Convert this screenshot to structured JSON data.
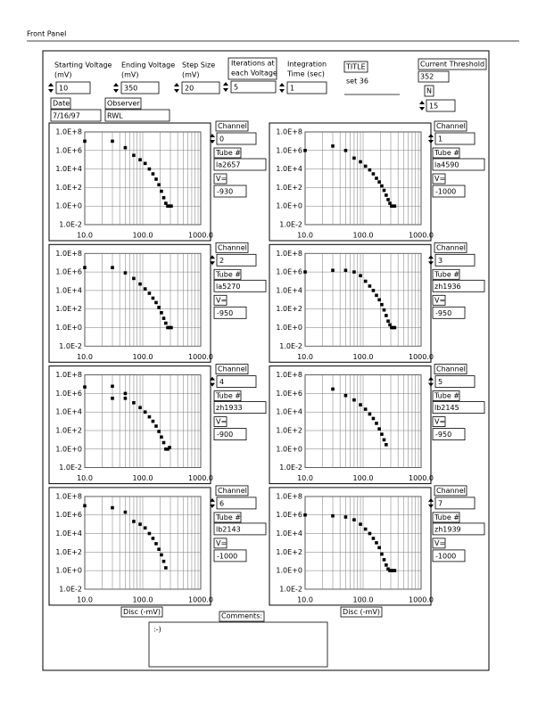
{
  "header": {
    "title": "Front Panel"
  },
  "controls": {
    "starting_voltage": {
      "label": [
        "Starting Voltage",
        "(mV)"
      ],
      "value": 10
    },
    "ending_voltage": {
      "label": [
        "Ending Voltage",
        "(mV)"
      ],
      "value": 350
    },
    "step_size": {
      "label": [
        "Step Size",
        "(mV)"
      ],
      "value": 20
    },
    "iterations": {
      "label": [
        "Iterations at",
        "each Voltage"
      ],
      "value": 5
    },
    "integration_time": {
      "label": [
        "Integration",
        "Time (sec)"
      ],
      "value": 1
    },
    "title": {
      "label": "TITLE",
      "value": "set 36"
    },
    "current_threshold": {
      "label": "Current Threshold",
      "value": 352
    },
    "n": {
      "label": "N",
      "value": 15
    },
    "date": {
      "label": "Date",
      "value": "7/16/97"
    },
    "observer": {
      "label": "Observer",
      "value": "RWL"
    },
    "comments": {
      "label": "Comments:",
      "value": ":-)"
    }
  },
  "channels": [
    {
      "label": "Channel",
      "value": 0,
      "tube_label": "Tube #",
      "tube": "la2657",
      "v_label": "V=",
      "v": -930
    },
    {
      "label": "Channel",
      "value": 1,
      "tube_label": "Tube #",
      "tube": "la4590",
      "v_label": "V=",
      "v": -1000
    },
    {
      "label": "Channel",
      "value": 2,
      "tube_label": "Tube #",
      "tube": "la5270",
      "v_label": "V=",
      "v": -950
    },
    {
      "label": "Channel",
      "value": 3,
      "tube_label": "Tube #",
      "tube": "zh1936",
      "v_label": "V=",
      "v": -950
    },
    {
      "label": "Channel",
      "value": 4,
      "tube_label": "Tube #",
      "tube": "zh1933",
      "v_label": "V=",
      "v": -900
    },
    {
      "label": "Channel",
      "value": 5,
      "tube_label": "Tube #",
      "tube": "lb2145",
      "v_label": "V=",
      "v": -950
    },
    {
      "label": "Channel",
      "value": 6,
      "tube_label": "Tube #",
      "tube": "lb2143",
      "v_label": "V=",
      "v": -1000
    },
    {
      "label": "Channel",
      "value": 7,
      "tube_label": "Tube #",
      "tube": "zh1939",
      "v_label": "V=",
      "v": -1000
    }
  ],
  "chart_data": [
    {
      "type": "scatter",
      "log_x": true,
      "log_y": true,
      "grid": true,
      "color": "#000000",
      "x": [
        10,
        30,
        50,
        70,
        90,
        110,
        130,
        150,
        170,
        190,
        210,
        230,
        250,
        270,
        290,
        310
      ],
      "y": [
        10000000,
        10000000,
        2000000,
        300000,
        100000,
        40000,
        10000,
        3000,
        800,
        200,
        40,
        8,
        2,
        1,
        1,
        1
      ],
      "xlim": [
        10,
        1000
      ],
      "ylim": [
        0.01,
        100000000
      ],
      "xticks": [
        {
          "value": 10,
          "label": "10.0"
        },
        {
          "value": 100,
          "label": "100.0"
        },
        {
          "value": 1000,
          "label": "1000.0"
        }
      ],
      "yticks": [
        {
          "value": 0.01,
          "label": "1.0E-2"
        },
        {
          "value": 1,
          "label": "1.0E+0"
        },
        {
          "value": 100,
          "label": "1.0E+2"
        },
        {
          "value": 10000,
          "label": "1.0E+4"
        },
        {
          "value": 1000000,
          "label": "1.0E+6"
        },
        {
          "value": 100000000,
          "label": "1.0E+8"
        }
      ]
    },
    {
      "type": "scatter",
      "log_x": true,
      "log_y": true,
      "grid": true,
      "color": "#000000",
      "x": [
        10,
        30,
        50,
        70,
        90,
        110,
        130,
        150,
        170,
        190,
        210,
        230,
        250,
        270,
        290,
        310,
        330,
        350
      ],
      "y": [
        1000000,
        3000000,
        1000000,
        150000,
        60000,
        20000,
        8000,
        3000,
        1000,
        400,
        150,
        50,
        15,
        5,
        2,
        1,
        1,
        1
      ],
      "xlim": [
        10,
        1000
      ],
      "ylim": [
        0.01,
        100000000
      ],
      "xticks": [
        {
          "value": 10,
          "label": "10.0"
        },
        {
          "value": 100,
          "label": "100.0"
        },
        {
          "value": 1000,
          "label": "1000.0"
        }
      ],
      "yticks": [
        {
          "value": 0.01,
          "label": "1.0E-2"
        },
        {
          "value": 1,
          "label": "1.0E+0"
        },
        {
          "value": 100,
          "label": "1.0E+2"
        },
        {
          "value": 10000,
          "label": "1.0E+4"
        },
        {
          "value": 1000000,
          "label": "1.0E+6"
        },
        {
          "value": 100000000,
          "label": "1.0E+8"
        }
      ]
    },
    {
      "type": "scatter",
      "log_x": true,
      "log_y": true,
      "grid": true,
      "color": "#000000",
      "x": [
        10,
        30,
        50,
        70,
        90,
        110,
        130,
        150,
        170,
        190,
        210,
        230,
        250,
        270,
        290,
        310
      ],
      "y": [
        3000000,
        3000000,
        800000,
        200000,
        50000,
        15000,
        5000,
        1500,
        500,
        150,
        40,
        10,
        3,
        1,
        1,
        1
      ],
      "xlim": [
        10,
        1000
      ],
      "ylim": [
        0.01,
        100000000
      ],
      "xticks": [
        {
          "value": 10,
          "label": "10.0"
        },
        {
          "value": 100,
          "label": "100.0"
        },
        {
          "value": 1000,
          "label": "1000.0"
        }
      ],
      "yticks": [
        {
          "value": 0.01,
          "label": "1.0E-2"
        },
        {
          "value": 1,
          "label": "1.0E+0"
        },
        {
          "value": 100,
          "label": "1.0E+2"
        },
        {
          "value": 10000,
          "label": "1.0E+4"
        },
        {
          "value": 1000000,
          "label": "1.0E+6"
        },
        {
          "value": 100000000,
          "label": "1.0E+8"
        }
      ]
    },
    {
      "type": "scatter",
      "log_x": true,
      "log_y": true,
      "grid": true,
      "color": "#000000",
      "x": [
        10,
        30,
        50,
        70,
        90,
        110,
        130,
        150,
        170,
        190,
        210,
        230,
        250,
        270,
        290,
        310,
        330,
        350
      ],
      "y": [
        1000000,
        1500000,
        1500000,
        1000000,
        400000,
        100000,
        30000,
        10000,
        3000,
        1000,
        300,
        80,
        20,
        5,
        2,
        1,
        1,
        1
      ],
      "xlim": [
        10,
        1000
      ],
      "ylim": [
        0.01,
        100000000
      ],
      "xticks": [
        {
          "value": 10,
          "label": "10.0"
        },
        {
          "value": 100,
          "label": "100.0"
        },
        {
          "value": 1000,
          "label": "1000.0"
        }
      ],
      "yticks": [
        {
          "value": 0.01,
          "label": "1.0E-2"
        },
        {
          "value": 1,
          "label": "1.0E+0"
        },
        {
          "value": 100,
          "label": "1.0E+2"
        },
        {
          "value": 10000,
          "label": "1.0E+4"
        },
        {
          "value": 1000000,
          "label": "1.0E+6"
        },
        {
          "value": 100000000,
          "label": "1.0E+8"
        }
      ]
    },
    {
      "type": "scatter",
      "log_x": true,
      "log_y": true,
      "grid": true,
      "color": "#000000",
      "x": [
        10,
        30,
        30,
        50,
        50,
        70,
        90,
        110,
        130,
        150,
        170,
        190,
        210,
        230,
        250,
        270,
        290
      ],
      "y": [
        5000000,
        6000000,
        300000,
        1000000,
        300000,
        100000,
        30000,
        10000,
        3000,
        1000,
        300,
        80,
        20,
        5,
        1,
        1,
        1.5
      ],
      "xlim": [
        10,
        1000
      ],
      "ylim": [
        0.01,
        100000000
      ],
      "xticks": [
        {
          "value": 10,
          "label": "10.0"
        },
        {
          "value": 100,
          "label": "100.0"
        },
        {
          "value": 1000,
          "label": "1000.0"
        }
      ],
      "yticks": [
        {
          "value": 0.01,
          "label": "1.0E-2"
        },
        {
          "value": 1,
          "label": "1.0E+0"
        },
        {
          "value": 100,
          "label": "1.0E+2"
        },
        {
          "value": 10000,
          "label": "1.0E+4"
        },
        {
          "value": 1000000,
          "label": "1.0E+6"
        },
        {
          "value": 100000000,
          "label": "1.0E+8"
        }
      ]
    },
    {
      "type": "scatter",
      "log_x": true,
      "log_y": true,
      "grid": true,
      "color": "#000000",
      "x": [
        30,
        50,
        70,
        90,
        110,
        130,
        150,
        170,
        190,
        210,
        230,
        250
      ],
      "y": [
        3000000,
        600000,
        200000,
        60000,
        20000,
        6000,
        2000,
        600,
        150,
        40,
        10,
        3
      ],
      "xlim": [
        10,
        1000
      ],
      "ylim": [
        0.01,
        100000000
      ],
      "xticks": [
        {
          "value": 10,
          "label": "10.0"
        },
        {
          "value": 100,
          "label": "100.0"
        },
        {
          "value": 1000,
          "label": "1000.0"
        }
      ],
      "yticks": [
        {
          "value": 0.01,
          "label": "1.0E-2"
        },
        {
          "value": 1,
          "label": "1.0E+0"
        },
        {
          "value": 100,
          "label": "1.0E+2"
        },
        {
          "value": 10000,
          "label": "1.0E+4"
        },
        {
          "value": 1000000,
          "label": "1.0E+6"
        },
        {
          "value": 100000000,
          "label": "1.0E+8"
        }
      ]
    },
    {
      "type": "scatter",
      "log_x": true,
      "log_y": true,
      "grid": true,
      "color": "#000000",
      "x_label": "Disc (-mV)",
      "x": [
        10,
        30,
        50,
        70,
        90,
        110,
        130,
        150,
        170,
        190,
        210,
        230,
        250
      ],
      "y": [
        10000000,
        6000000,
        2000000,
        200000,
        100000,
        40000,
        10000,
        3000,
        800,
        200,
        50,
        10,
        2
      ],
      "xlim": [
        10,
        1000
      ],
      "ylim": [
        0.01,
        100000000
      ],
      "xticks": [
        {
          "value": 10,
          "label": "10.0"
        },
        {
          "value": 100,
          "label": "100.0"
        },
        {
          "value": 1000,
          "label": "1000.0"
        }
      ],
      "yticks": [
        {
          "value": 0.01,
          "label": "1.0E-2"
        },
        {
          "value": 1,
          "label": "1.0E+0"
        },
        {
          "value": 100,
          "label": "1.0E+2"
        },
        {
          "value": 10000,
          "label": "1.0E+4"
        },
        {
          "value": 1000000,
          "label": "1.0E+6"
        },
        {
          "value": 100000000,
          "label": "1.0E+8"
        }
      ]
    },
    {
      "type": "scatter",
      "log_x": true,
      "log_y": true,
      "grid": true,
      "color": "#000000",
      "x_label": "Disc (-mV)",
      "x": [
        10,
        30,
        50,
        70,
        90,
        110,
        130,
        150,
        170,
        190,
        210,
        230,
        250,
        270,
        290,
        310,
        330,
        350
      ],
      "y": [
        1000000,
        800000,
        600000,
        300000,
        100000,
        30000,
        10000,
        3000,
        1000,
        300,
        60,
        15,
        4,
        1.5,
        1,
        1,
        1,
        1
      ],
      "xlim": [
        10,
        1000
      ],
      "ylim": [
        0.01,
        100000000
      ],
      "xticks": [
        {
          "value": 10,
          "label": "10.0"
        },
        {
          "value": 100,
          "label": "100.0"
        },
        {
          "value": 1000,
          "label": "1000.0"
        }
      ],
      "yticks": [
        {
          "value": 0.01,
          "label": "1.0E-2"
        },
        {
          "value": 1,
          "label": "1.0E+0"
        },
        {
          "value": 100,
          "label": "1.0E+2"
        },
        {
          "value": 10000,
          "label": "1.0E+4"
        },
        {
          "value": 1000000,
          "label": "1.0E+6"
        },
        {
          "value": 100000000,
          "label": "1.0E+8"
        }
      ]
    }
  ]
}
